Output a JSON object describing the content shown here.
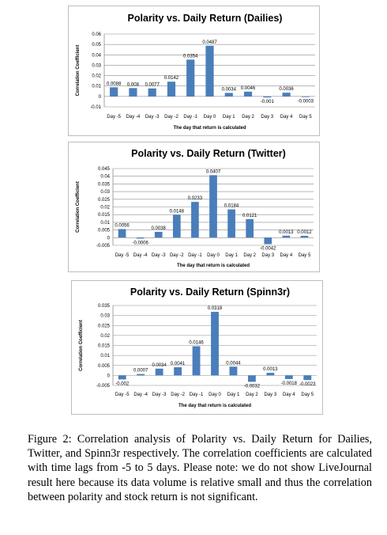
{
  "chart_data": [
    {
      "type": "bar",
      "title": "Polarity vs. Daily Return (Dailies)",
      "xlabel": "The day  that return is calculated",
      "ylabel": "Correlation Coefficient",
      "categories": [
        "Day -5",
        "Day -4",
        "Day -3",
        "Day -2",
        "Day -1",
        "Day 0",
        "Day 1",
        "Day 2",
        "Day 3",
        "Day 4",
        "Day 5"
      ],
      "values": [
        0.0088,
        0.008,
        0.0077,
        0.0142,
        0.0354,
        0.0487,
        0.0034,
        0.0046,
        -0.001,
        0.0036,
        -0.0003
      ],
      "value_labels": [
        "0.0088",
        "0.008",
        "0.0077",
        "0.0142",
        "0.0354",
        "0.0487",
        "0.0034",
        "0.0046",
        "-0.001",
        "0.0036",
        "-0.0003"
      ],
      "ylim": [
        -0.01,
        0.06
      ],
      "yticks": [
        "-0.01",
        "0",
        "0.01",
        "0.02",
        "0.03",
        "0.04",
        "0.05",
        "0.06"
      ],
      "ytick_values": [
        -0.01,
        0,
        0.01,
        0.02,
        0.03,
        0.04,
        0.05,
        0.06
      ],
      "grid": true,
      "bar_color": "#4a7ebb"
    },
    {
      "type": "bar",
      "title": "Polarity vs. Daily Return (Twitter)",
      "xlabel": "The day that return is calculated",
      "ylabel": "Correlation Coefficient",
      "categories": [
        "Day -5",
        "Day -4",
        "Day -3",
        "Day -2",
        "Day -1",
        "Day 0",
        "Day 1",
        "Day 2",
        "Day 3",
        "Day 4",
        "Day 5"
      ],
      "values": [
        0.0056,
        -0.0006,
        0.0038,
        0.0148,
        0.0233,
        0.0407,
        0.0184,
        0.0121,
        -0.0042,
        0.0013,
        0.0012
      ],
      "value_labels": [
        "0.0056",
        "-0.0006",
        "0.0038",
        "0.0148",
        "0.0233",
        "0.0407",
        "0.0184",
        "0.0121",
        "-0.0042",
        "0.0013",
        "0.0012"
      ],
      "ylim": [
        -0.005,
        0.045
      ],
      "yticks": [
        "-0.005",
        "0",
        "0.005",
        "0.01",
        "0.015",
        "0.02",
        "0.025",
        "0.03",
        "0.035",
        "0.04",
        "0.045"
      ],
      "ytick_values": [
        -0.005,
        0,
        0.005,
        0.01,
        0.015,
        0.02,
        0.025,
        0.03,
        0.035,
        0.04,
        0.045
      ],
      "grid": true,
      "bar_color": "#4a7ebb"
    },
    {
      "type": "bar",
      "title": "Polarity vs. Daily Return (Spinn3r)",
      "xlabel": "The day that return is calculated",
      "ylabel": "Correlation Coefficient",
      "categories": [
        "Day -5",
        "Day -4",
        "Day -3",
        "Day -2",
        "Day -1",
        "Day 0",
        "Day 1",
        "Day 2",
        "Day 3",
        "Day 4",
        "Day 5"
      ],
      "values": [
        -0.002,
        0.0007,
        0.0034,
        0.0041,
        0.0146,
        0.0318,
        0.0044,
        -0.0032,
        0.0013,
        -0.0018,
        -0.0023
      ],
      "value_labels": [
        "-0.002",
        "0.0007",
        "0.0034",
        "0.0041",
        "0.0146",
        "0.0318",
        "0.0044",
        "-0.0032",
        "0.0013",
        "-0.0018",
        "-0.0023"
      ],
      "ylim": [
        -0.005,
        0.035
      ],
      "yticks": [
        "-0.005",
        "0",
        "0.005",
        "0.01",
        "0.015",
        "0.02",
        "0.025",
        "0.03",
        "0.035"
      ],
      "ytick_values": [
        -0.005,
        0,
        0.005,
        0.01,
        0.015,
        0.02,
        0.025,
        0.03,
        0.035
      ],
      "grid": true,
      "bar_color": "#4a7ebb"
    }
  ],
  "caption": "Figure 2: Correlation analysis of Polarity vs. Daily Return for Dailies, Twitter, and Spinn3r respectively. The correlation coefficients are calculated with time lags from -5 to 5 days. Please note: we do not show LiveJournal result here because its data volume is relative small and thus the correlation between polarity and stock return is not significant."
}
